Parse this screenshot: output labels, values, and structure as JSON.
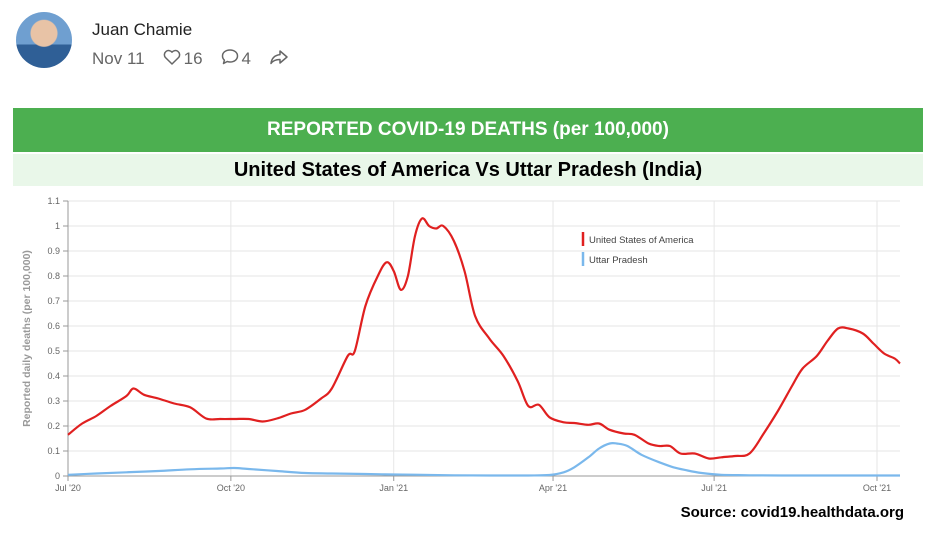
{
  "post": {
    "author": "Juan Chamie",
    "date": "Nov 11",
    "likes": "16",
    "comments": "4"
  },
  "banner": {
    "title": "REPORTED COVID-19 DEATHS (per 100,000)"
  },
  "subtitle": "United States of America Vs Uttar Pradesh (India)",
  "source": "Source: covid19.healthdata.org",
  "colors": {
    "banner": "#4caf50",
    "subtitle_bg": "#e9f7e9",
    "usa": "#e02020",
    "up": "#7ab8ec"
  },
  "chart_data": {
    "type": "line",
    "ylabel": "Reported daily deaths (per 100,000)",
    "xlabel": "",
    "ylim": [
      0,
      1.1
    ],
    "xlim": [
      "2020-07-01",
      "2021-10-14"
    ],
    "yticks": [
      "0",
      "0.1",
      "0.2",
      "0.3",
      "0.4",
      "0.5",
      "0.6",
      "0.7",
      "0.8",
      "0.9",
      "1",
      "1.1"
    ],
    "xticks": [
      {
        "date": "2020-07-01",
        "label": "Jul '20"
      },
      {
        "date": "2020-10-01",
        "label": "Oct '20"
      },
      {
        "date": "2021-01-01",
        "label": "Jan '21"
      },
      {
        "date": "2021-04-01",
        "label": "Apr '21"
      },
      {
        "date": "2021-07-01",
        "label": "Jul '21"
      },
      {
        "date": "2021-10-01",
        "label": "Oct '21"
      }
    ],
    "grid": true,
    "legend_position": "top-right",
    "series": [
      {
        "name": "United States of America",
        "color": "#e02020",
        "points": [
          [
            "2020-07-01",
            0.165
          ],
          [
            "2020-07-09",
            0.21
          ],
          [
            "2020-07-17",
            0.24
          ],
          [
            "2020-07-25",
            0.28
          ],
          [
            "2020-08-03",
            0.32
          ],
          [
            "2020-08-07",
            0.35
          ],
          [
            "2020-08-13",
            0.325
          ],
          [
            "2020-08-21",
            0.31
          ],
          [
            "2020-08-30",
            0.29
          ],
          [
            "2020-09-08",
            0.275
          ],
          [
            "2020-09-17",
            0.23
          ],
          [
            "2020-09-25",
            0.228
          ],
          [
            "2020-10-03",
            0.228
          ],
          [
            "2020-10-11",
            0.228
          ],
          [
            "2020-10-19",
            0.218
          ],
          [
            "2020-10-27",
            0.23
          ],
          [
            "2020-11-04",
            0.25
          ],
          [
            "2020-11-12",
            0.265
          ],
          [
            "2020-11-21",
            0.31
          ],
          [
            "2020-11-27",
            0.35
          ],
          [
            "2020-12-06",
            0.48
          ],
          [
            "2020-12-10",
            0.5
          ],
          [
            "2020-12-16",
            0.68
          ],
          [
            "2020-12-23",
            0.8
          ],
          [
            "2020-12-28",
            0.855
          ],
          [
            "2021-01-01",
            0.82
          ],
          [
            "2021-01-05",
            0.745
          ],
          [
            "2021-01-09",
            0.8
          ],
          [
            "2021-01-13",
            0.96
          ],
          [
            "2021-01-17",
            1.03
          ],
          [
            "2021-01-21",
            1.0
          ],
          [
            "2021-01-25",
            0.99
          ],
          [
            "2021-01-29",
            1.0
          ],
          [
            "2021-02-04",
            0.94
          ],
          [
            "2021-02-10",
            0.82
          ],
          [
            "2021-02-16",
            0.64
          ],
          [
            "2021-02-24",
            0.55
          ],
          [
            "2021-03-04",
            0.48
          ],
          [
            "2021-03-12",
            0.38
          ],
          [
            "2021-03-18",
            0.28
          ],
          [
            "2021-03-24",
            0.285
          ],
          [
            "2021-03-30",
            0.235
          ],
          [
            "2021-04-07",
            0.215
          ],
          [
            "2021-04-13",
            0.212
          ],
          [
            "2021-04-21",
            0.205
          ],
          [
            "2021-04-27",
            0.21
          ],
          [
            "2021-05-03",
            0.185
          ],
          [
            "2021-05-11",
            0.17
          ],
          [
            "2021-05-17",
            0.165
          ],
          [
            "2021-05-25",
            0.13
          ],
          [
            "2021-05-31",
            0.12
          ],
          [
            "2021-06-06",
            0.12
          ],
          [
            "2021-06-12",
            0.09
          ],
          [
            "2021-06-20",
            0.09
          ],
          [
            "2021-06-28",
            0.07
          ],
          [
            "2021-07-05",
            0.075
          ],
          [
            "2021-07-13",
            0.08
          ],
          [
            "2021-07-21",
            0.09
          ],
          [
            "2021-07-29",
            0.17
          ],
          [
            "2021-08-06",
            0.26
          ],
          [
            "2021-08-14",
            0.36
          ],
          [
            "2021-08-20",
            0.43
          ],
          [
            "2021-08-28",
            0.48
          ],
          [
            "2021-09-03",
            0.54
          ],
          [
            "2021-09-09",
            0.59
          ],
          [
            "2021-09-15",
            0.59
          ],
          [
            "2021-09-23",
            0.57
          ],
          [
            "2021-09-29",
            0.53
          ],
          [
            "2021-10-05",
            0.49
          ],
          [
            "2021-10-11",
            0.47
          ],
          [
            "2021-10-14",
            0.45
          ]
        ]
      },
      {
        "name": "Uttar Pradesh",
        "color": "#7ab8ec",
        "points": [
          [
            "2020-07-01",
            0.005
          ],
          [
            "2020-07-17",
            0.01
          ],
          [
            "2020-08-03",
            0.015
          ],
          [
            "2020-08-21",
            0.02
          ],
          [
            "2020-09-08",
            0.027
          ],
          [
            "2020-09-25",
            0.03
          ],
          [
            "2020-10-03",
            0.032
          ],
          [
            "2020-10-11",
            0.028
          ],
          [
            "2020-10-27",
            0.02
          ],
          [
            "2020-11-12",
            0.012
          ],
          [
            "2020-11-27",
            0.01
          ],
          [
            "2020-12-16",
            0.008
          ],
          [
            "2021-01-01",
            0.006
          ],
          [
            "2021-01-17",
            0.005
          ],
          [
            "2021-02-04",
            0.003
          ],
          [
            "2021-02-24",
            0.002
          ],
          [
            "2021-03-18",
            0.002
          ],
          [
            "2021-03-30",
            0.004
          ],
          [
            "2021-04-07",
            0.015
          ],
          [
            "2021-04-13",
            0.035
          ],
          [
            "2021-04-21",
            0.075
          ],
          [
            "2021-04-27",
            0.11
          ],
          [
            "2021-05-03",
            0.13
          ],
          [
            "2021-05-07",
            0.13
          ],
          [
            "2021-05-13",
            0.12
          ],
          [
            "2021-05-21",
            0.085
          ],
          [
            "2021-05-31",
            0.055
          ],
          [
            "2021-06-08",
            0.035
          ],
          [
            "2021-06-16",
            0.022
          ],
          [
            "2021-06-24",
            0.012
          ],
          [
            "2021-07-05",
            0.005
          ],
          [
            "2021-07-21",
            0.003
          ],
          [
            "2021-08-14",
            0.002
          ],
          [
            "2021-09-09",
            0.002
          ],
          [
            "2021-09-29",
            0.002
          ],
          [
            "2021-10-14",
            0.002
          ]
        ]
      }
    ]
  }
}
